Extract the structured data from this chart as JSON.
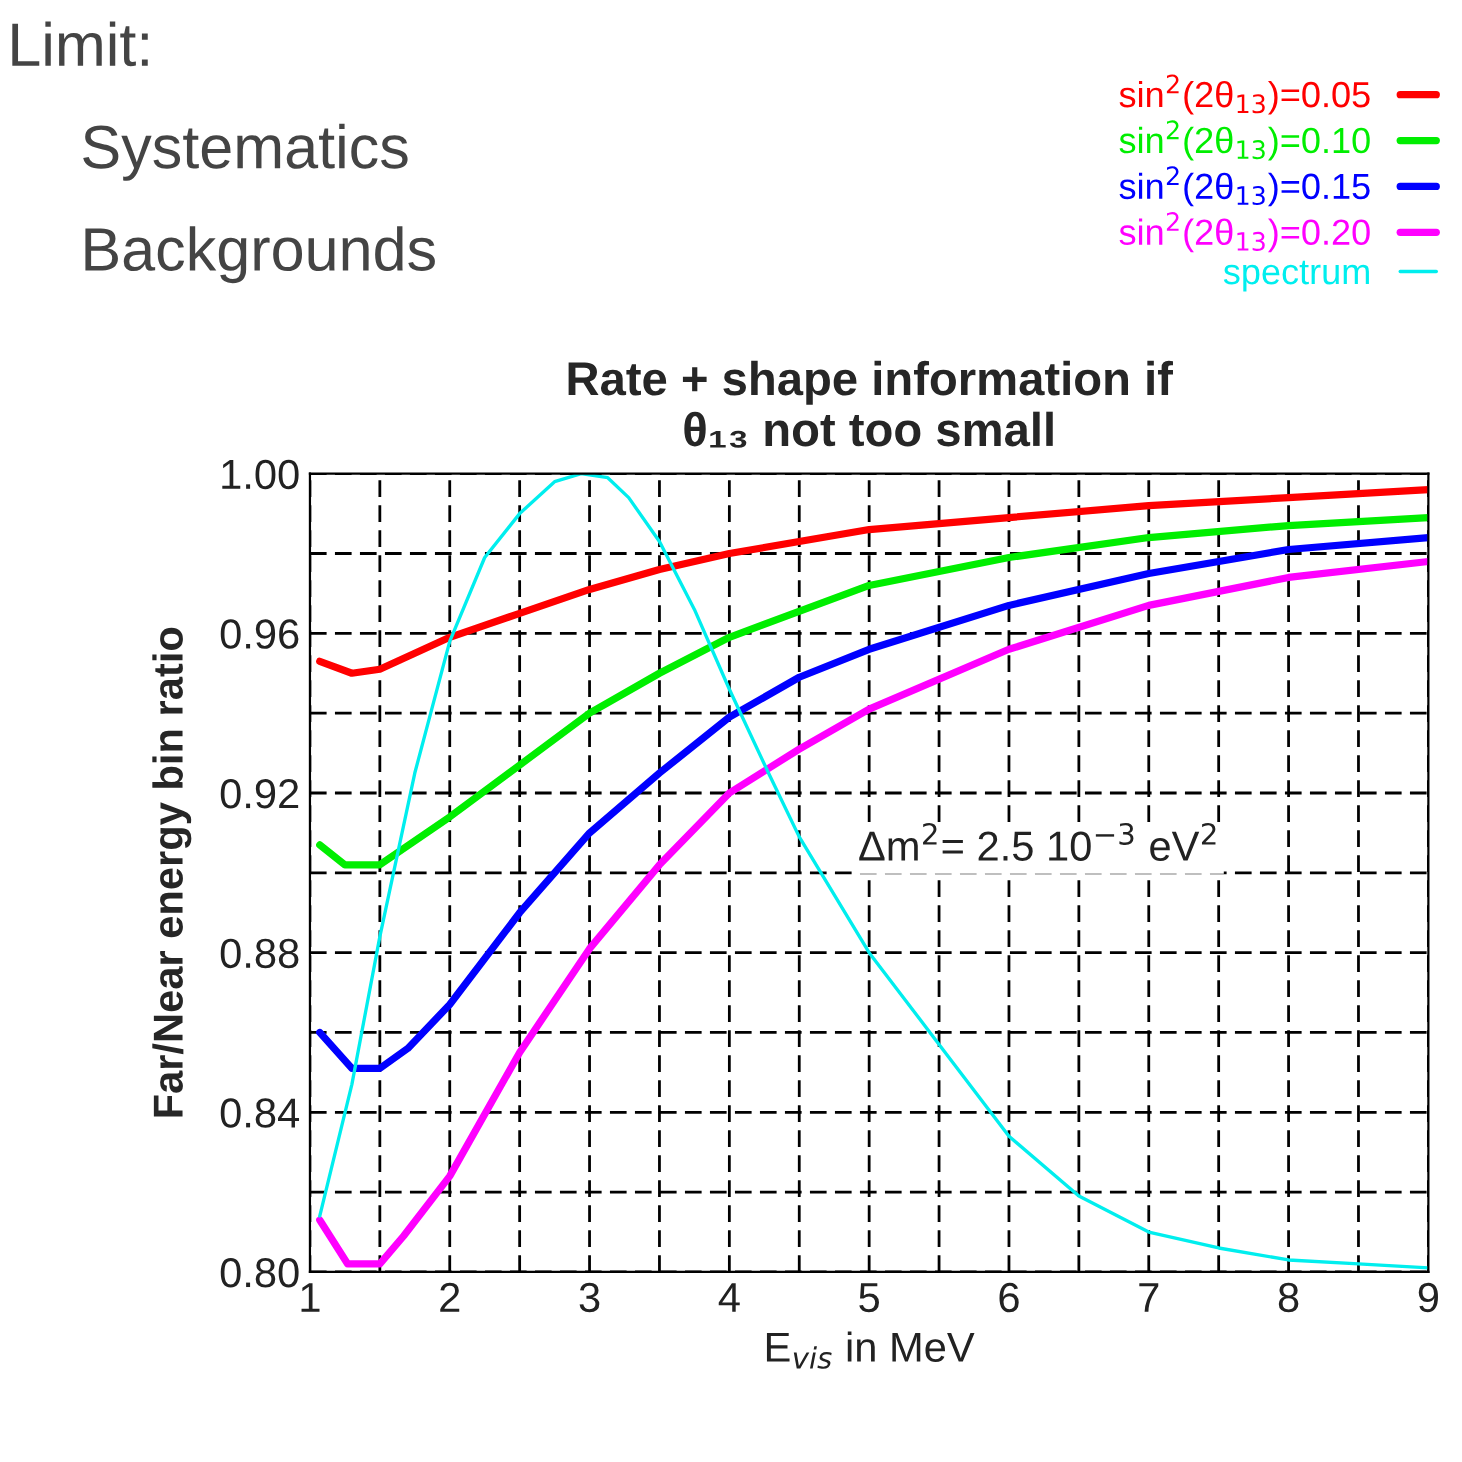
{
  "chart_data": {
    "type": "line",
    "title": "Rate + shape information if\nθ₁₃ not too small",
    "xlabel": "E$_{vis}$ in MeV",
    "ylabel": "Far/Near energy bin ratio",
    "annotations": [
      "Limit:",
      "Systematics",
      "Backgrounds",
      "Δm$^{2}$= 2.5 10$^{−3}$ eV$^{2}$"
    ],
    "xlim": [
      1,
      9
    ],
    "ylim": [
      0.8,
      1.0
    ],
    "xticks": [
      1,
      {
        "value": 1.5,
        "label": null
      },
      2,
      {
        "value": 2.5,
        "label": null
      },
      3,
      {
        "value": 3.5,
        "label": null
      },
      4,
      {
        "value": 4.5,
        "label": null
      },
      5,
      {
        "value": 5.5,
        "label": null
      },
      6,
      {
        "value": 6.5,
        "label": null
      },
      7,
      {
        "value": 7.5,
        "label": null
      },
      8,
      {
        "value": 8.5,
        "label": null
      },
      9
    ],
    "yticks": [
      {
        "value": 0.8,
        "label": "0.80"
      },
      {
        "value": 0.82,
        "label": null
      },
      {
        "value": 0.84,
        "label": "0.84"
      },
      {
        "value": 0.86,
        "label": null
      },
      {
        "value": 0.88,
        "label": "0.88"
      },
      {
        "value": 0.9,
        "label": null
      },
      {
        "value": 0.92,
        "label": "0.92"
      },
      {
        "value": 0.94,
        "label": null
      },
      {
        "value": 0.96,
        "label": "0.96"
      },
      {
        "value": 0.98,
        "label": null
      },
      {
        "value": 1.0,
        "label": "1.00"
      }
    ],
    "grid": true,
    "legend": "top right",
    "line_style": "solid",
    "series": [
      {
        "name": "sin$^{2}$(2θ$_{13}$)=0.05",
        "color": "#ff0000",
        "x": [
          1.07,
          1.3,
          1.5,
          2,
          2.5,
          3,
          3.5,
          4,
          5,
          6,
          7,
          8,
          9
        ],
        "values": [
          0.953,
          0.95,
          0.951,
          0.959,
          0.965,
          0.971,
          0.976,
          0.98,
          0.986,
          0.989,
          0.992,
          0.994,
          0.996
        ]
      },
      {
        "name": "sin$^{2}$(2θ$_{13}$)=0.10",
        "color": "#00ee00",
        "x": [
          1.07,
          1.25,
          1.5,
          2,
          2.5,
          3,
          3.5,
          4,
          5,
          6,
          7,
          8,
          9
        ],
        "values": [
          0.907,
          0.902,
          0.902,
          0.914,
          0.927,
          0.94,
          0.95,
          0.959,
          0.972,
          0.979,
          0.984,
          0.987,
          0.989
        ]
      },
      {
        "name": "sin$^{2}$(2θ$_{13}$)=0.15",
        "color": "#0000ff",
        "x": [
          1.07,
          1.3,
          1.5,
          1.7,
          2,
          2.5,
          3,
          3.5,
          4,
          4.5,
          5,
          6,
          7,
          8,
          9
        ],
        "values": [
          0.86,
          0.851,
          0.851,
          0.856,
          0.867,
          0.89,
          0.91,
          0.925,
          0.939,
          0.949,
          0.956,
          0.967,
          0.975,
          0.981,
          0.984
        ]
      },
      {
        "name": "sin$^{2}$(2θ$_{13}$)=0.20",
        "color": "#ff00ff",
        "x": [
          1.07,
          1.27,
          1.5,
          1.67,
          2,
          2.5,
          3,
          3.5,
          4,
          4.5,
          5,
          6,
          7,
          8,
          9
        ],
        "values": [
          0.813,
          0.802,
          0.802,
          0.809,
          0.824,
          0.855,
          0.881,
          0.902,
          0.92,
          0.931,
          0.941,
          0.956,
          0.967,
          0.974,
          0.978
        ]
      },
      {
        "name": "spectrum",
        "color": "#00eeee",
        "x": [
          1.07,
          1.3,
          1.5,
          1.75,
          2,
          2.25,
          2.5,
          2.75,
          2.94,
          3.13,
          3.28,
          3.5,
          3.75,
          4,
          4.28,
          4.5,
          5,
          5.5,
          6,
          6.5,
          7,
          7.5,
          8,
          8.5,
          9
        ],
        "values": [
          0.814,
          0.847,
          0.884,
          0.925,
          0.958,
          0.979,
          0.99,
          0.998,
          1.0,
          0.999,
          0.994,
          0.983,
          0.966,
          0.946,
          0.925,
          0.909,
          0.88,
          0.857,
          0.834,
          0.819,
          0.81,
          0.806,
          0.803,
          0.802,
          0.801
        ]
      }
    ]
  }
}
